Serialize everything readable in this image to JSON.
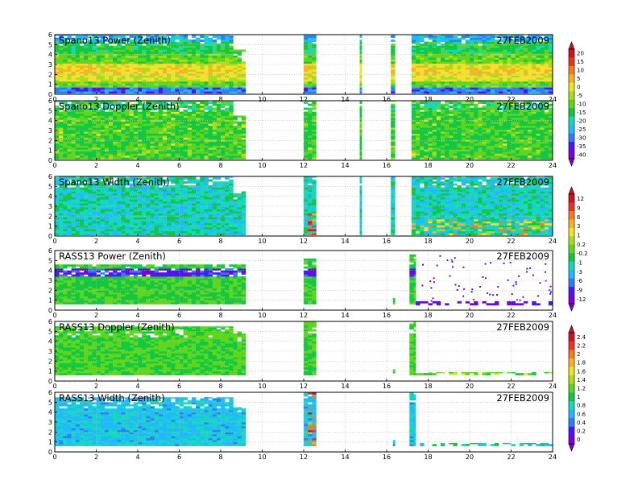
{
  "chart_data": {
    "type": "heatmap",
    "date": "27FEB2009",
    "xlim": [
      0,
      24
    ],
    "ylim": [
      0,
      6
    ],
    "xticks": [
      "0",
      "2",
      "4",
      "6",
      "8",
      "10",
      "12",
      "14",
      "16",
      "18",
      "20",
      "22",
      "24"
    ],
    "yticks": [
      "0",
      "1",
      "2",
      "3",
      "4",
      "5",
      "6"
    ],
    "grid": true,
    "panels": [
      {
        "title": "Spano13  Power  (Zenith)",
        "date": "27FEB2009",
        "kind": "spano-power",
        "colorbar": 0,
        "coverage": [
          [
            0,
            8.6,
            0.1,
            6
          ],
          [
            8.6,
            9.2,
            0.1,
            4.5
          ],
          [
            12.0,
            12.6,
            0.1,
            6
          ],
          [
            14.7,
            14.8,
            0.1,
            6
          ],
          [
            16.2,
            16.4,
            0.1,
            6
          ],
          [
            17.2,
            24,
            0.1,
            6
          ]
        ]
      },
      {
        "title": "Spano13  Doppler  (Zenith)",
        "date": "27FEB2009",
        "kind": "spano-doppler",
        "colorbar": 0,
        "coverage": [
          [
            0,
            8.6,
            0.1,
            6
          ],
          [
            8.6,
            9.2,
            0.1,
            4.5
          ],
          [
            12.0,
            12.6,
            0.1,
            6
          ],
          [
            14.7,
            14.8,
            0.1,
            6
          ],
          [
            16.2,
            16.4,
            0.1,
            6
          ],
          [
            17.2,
            24,
            0.1,
            6
          ]
        ]
      },
      {
        "title": "Spano13  Width  (Zenith)",
        "date": "27FEB2009",
        "kind": "spano-width",
        "colorbar": 1,
        "coverage": [
          [
            0,
            8.6,
            0.1,
            6
          ],
          [
            8.6,
            9.2,
            0.1,
            4.5
          ],
          [
            12.0,
            12.6,
            0.1,
            6
          ],
          [
            14.7,
            14.8,
            0.1,
            6
          ],
          [
            16.2,
            16.4,
            0.1,
            6
          ],
          [
            17.2,
            24,
            0.1,
            6
          ]
        ]
      },
      {
        "title": "RASS13  Power  (Zenith)",
        "date": "27FEB2009",
        "kind": "rass-power",
        "colorbar": 1,
        "coverage": [
          [
            0,
            8.6,
            0.6,
            4.6
          ],
          [
            8.6,
            9.2,
            0.6,
            4.6
          ],
          [
            12.0,
            12.6,
            0.6,
            5.2
          ],
          [
            16.3,
            16.4,
            0.6,
            1.2
          ],
          [
            17.1,
            17.4,
            0.6,
            5.6
          ],
          [
            17.4,
            24,
            0.5,
            0.9
          ]
        ]
      },
      {
        "title": "RASS13  Doppler  (Zenith)",
        "date": "27FEB2009",
        "kind": "rass-doppler",
        "colorbar": 2,
        "coverage": [
          [
            0,
            8.6,
            0.6,
            5.5
          ],
          [
            8.6,
            9.2,
            0.6,
            5.0
          ],
          [
            12.0,
            12.6,
            0.6,
            6
          ],
          [
            16.3,
            16.4,
            0.6,
            1.2
          ],
          [
            17.1,
            17.4,
            0.6,
            6
          ],
          [
            17.4,
            24,
            0.6,
            0.9
          ]
        ]
      },
      {
        "title": "RASS13  Width  (Zenith)",
        "date": "27FEB2009",
        "kind": "rass-width",
        "colorbar": 2,
        "coverage": [
          [
            0,
            8.6,
            0.6,
            5.5
          ],
          [
            8.6,
            9.2,
            0.6,
            4.5
          ],
          [
            12.0,
            12.6,
            0.6,
            6
          ],
          [
            16.3,
            16.4,
            0.6,
            1.2
          ],
          [
            17.1,
            17.4,
            0.6,
            6
          ],
          [
            17.4,
            24,
            0.6,
            0.9
          ]
        ]
      }
    ],
    "colorbars": [
      {
        "labels": [
          "20",
          "15",
          "10",
          "5",
          "0",
          "-5",
          "-10",
          "-15",
          "-20",
          "-25",
          "-30",
          "-35",
          "-40"
        ]
      },
      {
        "labels": [
          "12",
          "9",
          "6",
          "3",
          "1",
          "0.2",
          "-0.2",
          "-1",
          "-3",
          "-6",
          "-9",
          "-12"
        ]
      },
      {
        "labels": [
          "2.4",
          "2.2",
          "2",
          "1.8",
          "1.6",
          "1.4",
          "1.2",
          "1",
          "0.8",
          "0.6",
          "0.4",
          "0.2",
          "0"
        ]
      }
    ],
    "palette": [
      "#7a00d6",
      "#4b14ff",
      "#2f7dff",
      "#21b9ff",
      "#15d8c0",
      "#12c842",
      "#5fd51e",
      "#a9de1c",
      "#f2e22a",
      "#f6b323",
      "#f47b1e",
      "#ec331f",
      "#cc1226"
    ]
  }
}
